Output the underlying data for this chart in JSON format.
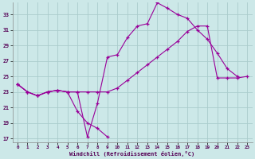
{
  "xlabel": "Windchill (Refroidissement éolien,°C)",
  "bg_color": "#cce8e8",
  "grid_color": "#aacccc",
  "line_color": "#990099",
  "xlim": [
    -0.5,
    23.5
  ],
  "ylim": [
    16.5,
    34.5
  ],
  "yticks": [
    17,
    19,
    21,
    23,
    25,
    27,
    29,
    31,
    33
  ],
  "xticks": [
    0,
    1,
    2,
    3,
    4,
    5,
    6,
    7,
    8,
    9,
    10,
    11,
    12,
    13,
    14,
    15,
    16,
    17,
    18,
    19,
    20,
    21,
    22,
    23
  ],
  "line1_x": [
    0,
    1,
    2,
    3,
    4,
    5,
    6,
    7,
    8,
    9
  ],
  "line1_y": [
    24.0,
    23.0,
    22.5,
    23.0,
    23.2,
    23.0,
    20.5,
    19.0,
    18.3,
    17.2
  ],
  "line2_x": [
    0,
    1,
    2,
    3,
    4,
    5,
    6,
    7,
    8,
    9,
    10,
    11,
    12,
    13,
    14,
    15,
    16,
    17,
    18,
    19,
    20,
    21,
    22
  ],
  "line2_y": [
    24.0,
    23.0,
    22.5,
    23.0,
    23.2,
    23.0,
    23.0,
    17.2,
    21.5,
    27.5,
    27.8,
    30.0,
    31.5,
    31.8,
    34.5,
    33.8,
    33.0,
    32.5,
    31.0,
    29.8,
    28.0,
    26.0,
    25.0
  ],
  "line3_x": [
    0,
    1,
    2,
    3,
    4,
    5,
    6,
    7,
    8,
    9,
    10,
    11,
    12,
    13,
    14,
    15,
    16,
    17,
    18,
    19,
    20,
    21,
    22,
    23
  ],
  "line3_y": [
    24.0,
    23.0,
    22.5,
    23.0,
    23.2,
    23.0,
    23.0,
    23.0,
    23.0,
    23.0,
    23.5,
    24.5,
    25.5,
    26.5,
    27.5,
    28.5,
    29.5,
    30.8,
    31.5,
    31.5,
    24.8,
    24.8,
    24.8,
    25.0
  ]
}
